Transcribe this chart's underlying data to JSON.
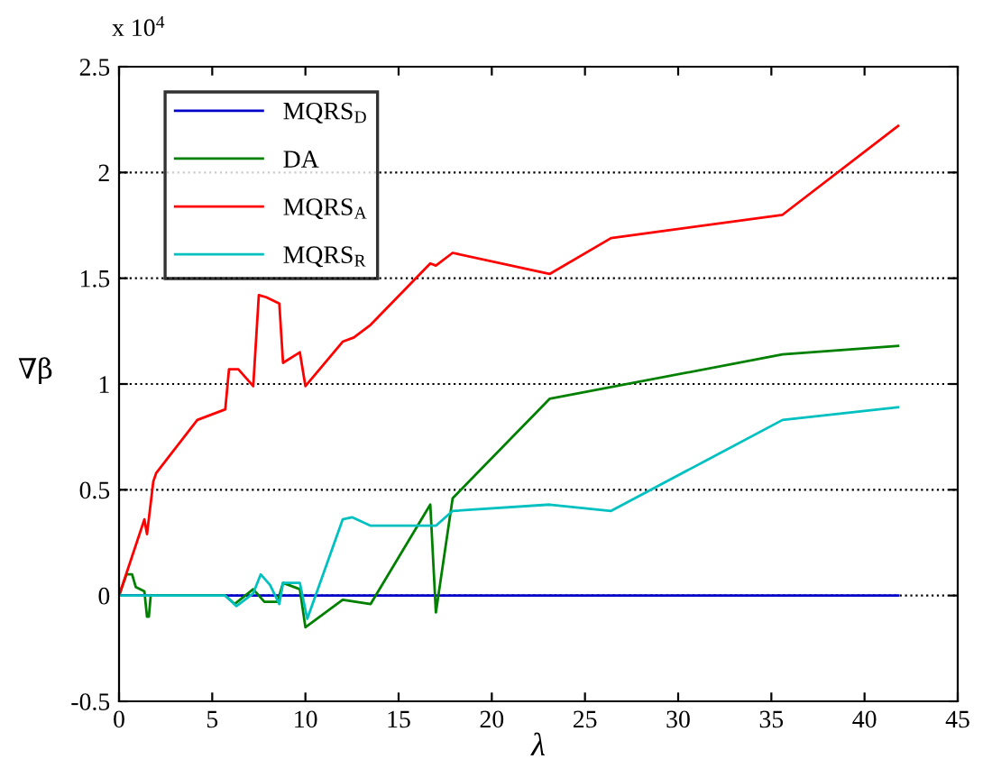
{
  "chart_data": {
    "type": "line",
    "xlabel": "λ",
    "ylabel": "∇β",
    "annotations": [
      "x 10$^{4}$"
    ],
    "xlim": [
      0,
      45
    ],
    "xticks": [
      0,
      5,
      10,
      15,
      20,
      25,
      30,
      35,
      40,
      45
    ],
    "ylim": [
      -0.5,
      2.5
    ],
    "yticks": [
      -0.5,
      0,
      0.5,
      1,
      1.5,
      2,
      2.5
    ],
    "grid": "y",
    "legend": "top left",
    "line_style": "solid",
    "marker": "none",
    "series": [
      {
        "name": "MQRS$_{D}$",
        "color": "#0000cc",
        "x": [
          0,
          41.8
        ],
        "values": [
          0,
          0
        ]
      },
      {
        "name": "DA",
        "color": "#008000",
        "x": [
          0,
          0.4,
          0.7,
          0.9,
          1.36,
          1.5,
          1.6,
          1.7,
          5.7,
          6.2,
          7.2,
          7.8,
          8.5,
          8.8,
          9.7,
          10.0,
          12.0,
          13.5,
          16.7,
          17.0,
          17.9,
          23.1,
          35.6,
          41.8
        ],
        "values": [
          0,
          0.1,
          0.1,
          0.04,
          0.02,
          -0.1,
          -0.1,
          0,
          0,
          -0.04,
          0.03,
          -0.03,
          -0.03,
          0.06,
          0.03,
          -0.15,
          -0.02,
          -0.04,
          0.43,
          -0.08,
          0.46,
          0.93,
          1.14,
          1.18
        ]
      },
      {
        "name": "MQRS$_{A}$",
        "color": "#ff0000",
        "x": [
          0,
          1.36,
          1.5,
          1.84,
          2.0,
          4.2,
          5.7,
          5.9,
          6.4,
          7.2,
          7.5,
          7.9,
          8.6,
          8.8,
          9.7,
          10.0,
          12.0,
          12.6,
          13.5,
          16.7,
          17.0,
          17.9,
          23.1,
          26.4,
          35.6,
          41.8
        ],
        "values": [
          0,
          0.36,
          0.29,
          0.54,
          0.58,
          0.83,
          0.88,
          1.07,
          1.07,
          0.99,
          1.42,
          1.41,
          1.38,
          1.1,
          1.15,
          0.99,
          1.2,
          1.22,
          1.28,
          1.57,
          1.56,
          1.62,
          1.52,
          1.69,
          1.8,
          2.22
        ]
      },
      {
        "name": "MQRS$_{R}$",
        "color": "#00c0c0",
        "x": [
          0,
          1.36,
          5.7,
          6.3,
          7.2,
          7.6,
          8.1,
          8.6,
          8.8,
          9.7,
          10.1,
          12.0,
          12.5,
          13.5,
          17.0,
          17.9,
          23.1,
          26.4,
          35.6,
          41.8
        ],
        "values": [
          0,
          0,
          0,
          -0.05,
          0.01,
          0.1,
          0.05,
          -0.04,
          0.06,
          0.06,
          -0.11,
          0.36,
          0.37,
          0.33,
          0.33,
          0.4,
          0.43,
          0.4,
          0.83,
          0.89
        ]
      }
    ]
  }
}
